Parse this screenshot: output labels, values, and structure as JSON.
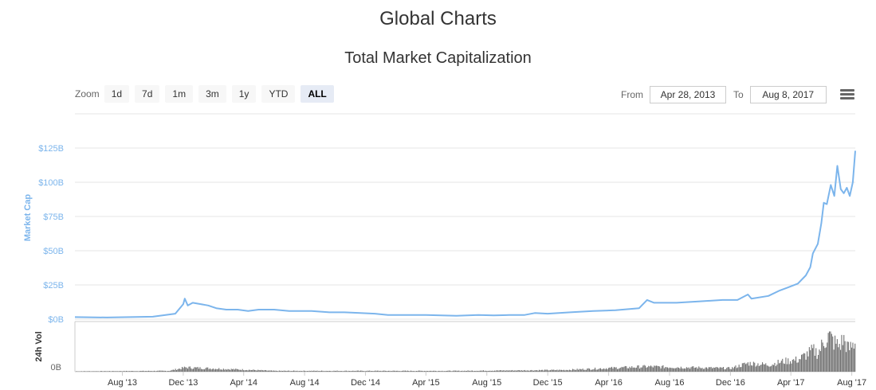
{
  "page": {
    "title": "Global Charts"
  },
  "toolbar": {
    "zoom_label": "Zoom",
    "zoom_buttons": [
      {
        "label": "1d",
        "active": false
      },
      {
        "label": "7d",
        "active": false
      },
      {
        "label": "1m",
        "active": false
      },
      {
        "label": "3m",
        "active": false
      },
      {
        "label": "1y",
        "active": false
      },
      {
        "label": "YTD",
        "active": false
      },
      {
        "label": "ALL",
        "active": true
      }
    ],
    "from_label": "From",
    "from_value": "Apr 28, 2013",
    "to_label": "To",
    "to_value": "Aug 8, 2017",
    "menu_icon": "hamburger-menu-icon"
  },
  "colors": {
    "market_cap": "#7cb5ec",
    "volume": "#707070"
  },
  "chart_data": {
    "type": "line",
    "title": "Total Market Capitalization",
    "x_range": [
      "2013-04-28",
      "2017-08-08"
    ],
    "x_tick_labels": [
      "Aug '13",
      "Dec '13",
      "Apr '14",
      "Aug '14",
      "Dec '14",
      "Apr '15",
      "Aug '15",
      "Dec '15",
      "Apr '16",
      "Aug '16",
      "Dec '16",
      "Apr '17",
      "Aug '17"
    ],
    "x_tick_dates": [
      "2013-08-01",
      "2013-12-01",
      "2014-04-01",
      "2014-08-01",
      "2014-12-01",
      "2015-04-01",
      "2015-08-01",
      "2015-12-01",
      "2016-04-01",
      "2016-08-01",
      "2016-12-01",
      "2017-04-01",
      "2017-08-01"
    ],
    "panels": [
      {
        "name": "market_cap",
        "ylabel": "Market Cap",
        "ylim": [
          0,
          125
        ],
        "y_tick_values": [
          0,
          25,
          50,
          75,
          100,
          125
        ],
        "y_tick_labels": [
          "$0B",
          "$25B",
          "$50B",
          "$75B",
          "$100B",
          "$125B"
        ],
        "unit": "billion USD",
        "series": [
          {
            "x": [
              "2013-04-28",
              "2013-07-01",
              "2013-10-01",
              "2013-11-15",
              "2013-12-01",
              "2013-12-04",
              "2013-12-10",
              "2013-12-20",
              "2014-01-05",
              "2014-01-20",
              "2014-02-05",
              "2014-02-25",
              "2014-03-20",
              "2014-04-10",
              "2014-05-01",
              "2014-06-01",
              "2014-07-01",
              "2014-08-15",
              "2014-09-20",
              "2014-10-20",
              "2014-11-20",
              "2014-12-20",
              "2015-01-15",
              "2015-02-01",
              "2015-03-01",
              "2015-04-01",
              "2015-06-01",
              "2015-07-15",
              "2015-08-15",
              "2015-09-15",
              "2015-10-15",
              "2015-11-05",
              "2015-12-01",
              "2016-01-15",
              "2016-03-01",
              "2016-04-15",
              "2016-06-01",
              "2016-06-17",
              "2016-07-01",
              "2016-08-15",
              "2016-10-01",
              "2016-11-15",
              "2016-12-15",
              "2017-01-05",
              "2017-01-12",
              "2017-02-15",
              "2017-03-10",
              "2017-03-25",
              "2017-04-15",
              "2017-05-01",
              "2017-05-10",
              "2017-05-15",
              "2017-05-25",
              "2017-06-01",
              "2017-06-06",
              "2017-06-12",
              "2017-06-20",
              "2017-06-27",
              "2017-07-03",
              "2017-07-10",
              "2017-07-16",
              "2017-07-22",
              "2017-07-28",
              "2017-08-03",
              "2017-08-08"
            ],
            "y": [
              1.5,
              1.2,
              1.8,
              4,
              11,
              15,
              10,
              12,
              11,
              10,
              8,
              7,
              7,
              6,
              7,
              7,
              6,
              6,
              5,
              5,
              4.5,
              4,
              3,
              3,
              3,
              3,
              2.5,
              3,
              2.8,
              3,
              3,
              4.5,
              4,
              5,
              6,
              6.5,
              8,
              14,
              12,
              12,
              13,
              14,
              14,
              18,
              15,
              17,
              21,
              23,
              26,
              32,
              38,
              48,
              55,
              70,
              85,
              84,
              98,
              90,
              112,
              95,
              92,
              96,
              90,
              100,
              123
            ],
            "line_color": "#7cb5ec"
          }
        ]
      },
      {
        "name": "volume",
        "ylabel": "24h Vol",
        "y_tick_labels": [
          "0B"
        ],
        "series": [
          {
            "x": [
              "2013-04-28",
              "2013-11-01",
              "2013-12-05",
              "2014-06-01",
              "2015-06-01",
              "2016-01-01",
              "2016-06-15",
              "2016-12-01",
              "2017-01-05",
              "2017-02-15",
              "2017-03-15",
              "2017-04-15",
              "2017-05-15",
              "2017-05-25",
              "2017-06-05",
              "2017-06-15",
              "2017-06-25",
              "2017-07-05",
              "2017-07-15",
              "2017-07-25",
              "2017-08-08"
            ],
            "y": [
              0.05,
              0.1,
              0.5,
              0.1,
              0.1,
              0.2,
              0.6,
              0.4,
              1.0,
              0.8,
              1.2,
              1.4,
              2.5,
              2.2,
              3.5,
              4.2,
              3.5,
              3.0,
              3.8,
              2.6,
              3.5
            ],
            "color": "#707070"
          }
        ]
      }
    ]
  }
}
